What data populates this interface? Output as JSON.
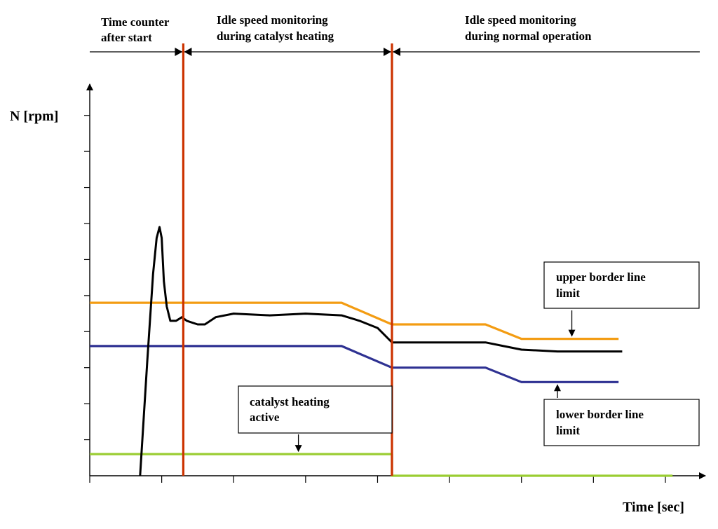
{
  "chart_data": {
    "type": "line",
    "title": "",
    "xlabel": "Time [sec]",
    "ylabel": "N [rpm]",
    "xlim": [
      0,
      8.4
    ],
    "ylim": [
      0,
      10.5
    ],
    "x_ticks": 8,
    "y_ticks": 10,
    "grid": false,
    "phases": [
      {
        "label_lines": [
          "Time counter",
          "after start"
        ]
      },
      {
        "label_lines": [
          "Idle speed monitoring",
          "during catalyst heating"
        ]
      },
      {
        "label_lines": [
          "Idle speed monitoring",
          "during normal operation"
        ]
      }
    ],
    "phase_boundaries": [
      1.3,
      4.2
    ],
    "series": [
      {
        "key": "engine-speed",
        "color": "#000000",
        "points": [
          [
            0.7,
            0
          ],
          [
            0.8,
            3.2
          ],
          [
            0.88,
            5.6
          ],
          [
            0.93,
            6.6
          ],
          [
            0.97,
            6.9
          ],
          [
            1.0,
            6.6
          ],
          [
            1.03,
            5.4
          ],
          [
            1.07,
            4.7
          ],
          [
            1.12,
            4.3
          ],
          [
            1.2,
            4.3
          ],
          [
            1.28,
            4.4
          ],
          [
            1.35,
            4.3
          ],
          [
            1.5,
            4.2
          ],
          [
            1.6,
            4.2
          ],
          [
            1.75,
            4.4
          ],
          [
            2.0,
            4.5
          ],
          [
            2.5,
            4.45
          ],
          [
            3.0,
            4.5
          ],
          [
            3.5,
            4.45
          ],
          [
            3.75,
            4.3
          ],
          [
            4.0,
            4.1
          ],
          [
            4.2,
            3.7
          ],
          [
            4.4,
            3.7
          ],
          [
            5.0,
            3.7
          ],
          [
            5.5,
            3.7
          ],
          [
            5.75,
            3.6
          ],
          [
            6.0,
            3.5
          ],
          [
            6.5,
            3.45
          ],
          [
            7.0,
            3.45
          ],
          [
            7.4,
            3.45
          ]
        ]
      },
      {
        "key": "upper-border-line-limit",
        "color": "#f39c12",
        "points": [
          [
            0,
            4.8
          ],
          [
            3.5,
            4.8
          ],
          [
            4.2,
            4.2
          ],
          [
            5.5,
            4.2
          ],
          [
            6.0,
            3.8
          ],
          [
            7.35,
            3.8
          ]
        ]
      },
      {
        "key": "lower-border-line-limit",
        "color": "#2e3192",
        "points": [
          [
            0,
            3.6
          ],
          [
            3.5,
            3.6
          ],
          [
            4.2,
            3.0
          ],
          [
            5.5,
            3.0
          ],
          [
            6.0,
            2.6
          ],
          [
            7.35,
            2.6
          ]
        ]
      },
      {
        "key": "catalyst-heating-active",
        "color": "#9acd32",
        "points": [
          [
            0,
            0.6
          ],
          [
            4.2,
            0.6
          ],
          [
            4.2,
            0
          ],
          [
            8.1,
            0
          ]
        ]
      }
    ],
    "annotations": [
      {
        "key": "catalyst",
        "lines": [
          "catalyst heating",
          "active"
        ],
        "arrow_to": [
          2.9,
          0.6
        ]
      },
      {
        "key": "upper",
        "lines": [
          "upper border line",
          "limit"
        ],
        "arrow_to": [
          6.7,
          3.8
        ]
      },
      {
        "key": "lower",
        "lines": [
          "lower border line",
          "limit"
        ],
        "arrow_to": [
          6.5,
          2.6
        ]
      }
    ],
    "colors": {
      "phase_line": "#cc3300",
      "axis": "#000000"
    }
  }
}
